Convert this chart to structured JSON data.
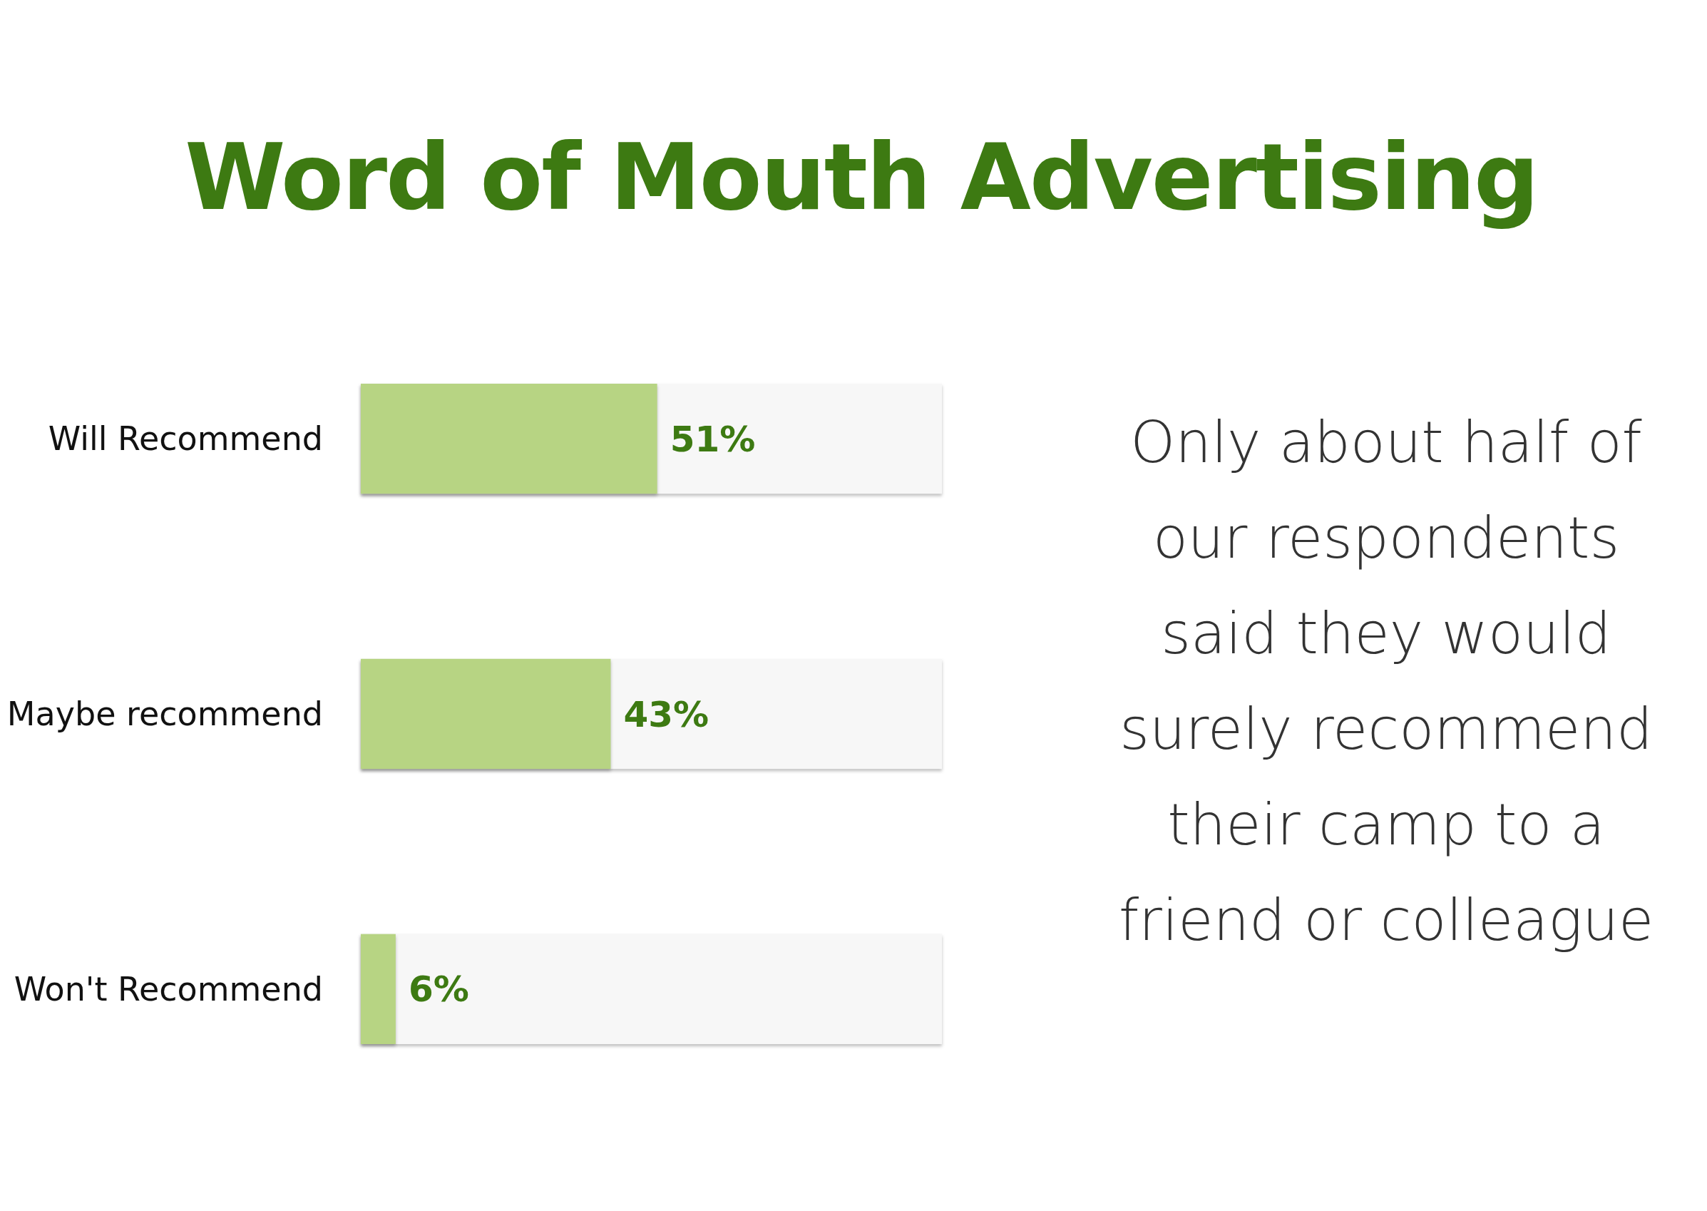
{
  "chart_data": {
    "type": "bar",
    "orientation": "horizontal",
    "title": "Word of Mouth Advertising",
    "categories": [
      "Will Recommend",
      "Maybe recommend",
      "Won't Recommend"
    ],
    "series": [
      {
        "color": "#b7d483",
        "values": [
          51,
          43,
          6
        ],
        "value_labels": [
          "51%",
          "43%",
          "6%"
        ]
      }
    ],
    "xlim": [
      0,
      100
    ],
    "annotations": [
      "Only about half of our respondents said they would surely recommend their camp to a friend or colleague"
    ]
  }
}
